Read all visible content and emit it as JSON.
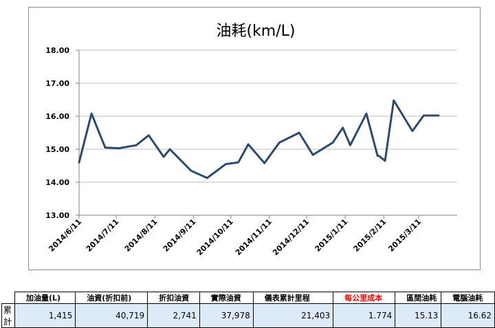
{
  "chart_data": {
    "type": "line",
    "title": "油耗(km/L)",
    "xlabel": "",
    "ylabel": "",
    "ylim": [
      13.0,
      18.0
    ],
    "yticks": [
      "13.00",
      "14.00",
      "15.00",
      "16.00",
      "17.00",
      "18.00"
    ],
    "grid": true,
    "legend": "none",
    "line_color": "#2d4a6e",
    "xaxis_type": "date",
    "xlim": [
      "2014-06-11",
      "2015-04-11"
    ],
    "xticks": [
      "2014/6/11",
      "2014/7/11",
      "2014/8/11",
      "2014/9/11",
      "2014/10/11",
      "2014/11/11",
      "2014/12/11",
      "2015/1/11",
      "2015/2/11",
      "2015/3/11"
    ],
    "series": [
      {
        "x": [
          "2014-06-11",
          "2014-06-21",
          "2014-07-02",
          "2014-07-13",
          "2014-07-27",
          "2014-08-06",
          "2014-08-18",
          "2014-08-23",
          "2014-09-09",
          "2014-09-22",
          "2014-10-07",
          "2014-10-17",
          "2014-10-25",
          "2014-11-07",
          "2014-11-19",
          "2014-12-05",
          "2014-12-16",
          "2015-01-01",
          "2015-01-09",
          "2015-01-15",
          "2015-01-28",
          "2015-02-06",
          "2015-02-07",
          "2015-02-12",
          "2015-02-19",
          "2015-03-06",
          "2015-03-15",
          "2015-03-27"
        ],
        "values": [
          14.6,
          16.08,
          15.05,
          15.03,
          15.12,
          15.42,
          14.77,
          15.0,
          14.35,
          14.13,
          14.55,
          14.6,
          15.15,
          14.58,
          15.2,
          15.5,
          14.83,
          15.2,
          15.65,
          15.12,
          16.08,
          14.8,
          14.8,
          14.65,
          16.48,
          15.55,
          16.02,
          16.02
        ]
      }
    ]
  },
  "summary_table": {
    "headers": [
      "加油量(L)",
      "油資(折扣前)",
      "折扣油資",
      "實際油資",
      "儀表累計里程",
      "每公里成本",
      "區間油耗",
      "電腦油耗"
    ],
    "highlight_color": "#ff0000",
    "row_label": "累計",
    "values": [
      "1,415",
      "40,719",
      "2,741",
      "37,978",
      "21,403",
      "1.774",
      "15.13",
      "16.62"
    ]
  }
}
